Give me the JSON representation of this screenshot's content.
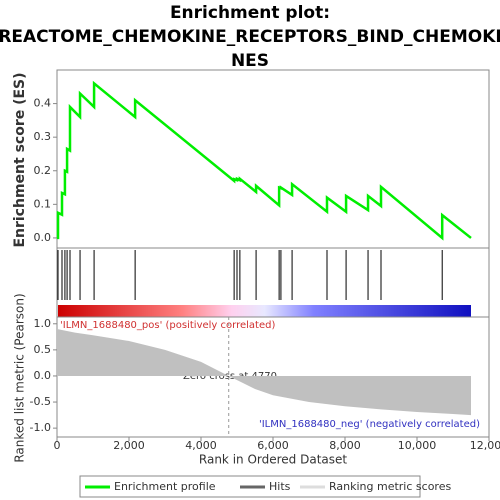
{
  "chart_data": [
    {
      "type": "line",
      "title": [
        "Enrichment plot:",
        "REACTOME_CHEMOKINE_RECEPTORS_BIND_CHEMOKI",
        "NES"
      ],
      "ylabel": "Enrichment score (ES)",
      "xlim": [
        0,
        12000
      ],
      "ylim": [
        -0.03,
        0.5
      ],
      "yticks": [
        {
          "value": 0,
          "label": "0.0"
        },
        0.1,
        0.2,
        0.3,
        0.4
      ],
      "series": [
        {
          "name": "Enrichment profile",
          "color": "#00ee00",
          "x": [
            0,
            28,
            28,
            139,
            139,
            220,
            220,
            280,
            280,
            361,
            361,
            640,
            640,
            1030,
            1030,
            2170,
            2170,
            4920,
            4920,
            5000,
            5000,
            5080,
            5080,
            5530,
            5530,
            6170,
            6170,
            6220,
            6220,
            6530,
            6530,
            7500,
            7500,
            8030,
            8030,
            8640,
            8640,
            9000,
            9000,
            10700,
            10700,
            11500
          ],
          "values": [
            0,
            0,
            0.075,
            0.069,
            0.134,
            0.13,
            0.2,
            0.197,
            0.265,
            0.26,
            0.39,
            0.36,
            0.43,
            0.39,
            0.46,
            0.36,
            0.41,
            0.17,
            0.175,
            0.172,
            0.176,
            0.172,
            0.176,
            0.137,
            0.155,
            0.097,
            0.15,
            0.148,
            0.15,
            0.128,
            0.16,
            0.078,
            0.12,
            0.078,
            0.125,
            0.083,
            0.125,
            0.095,
            0.152,
            0,
            0.068,
            0
          ]
        }
      ],
      "hits": {
        "name": "Hits",
        "color": "#000000",
        "x": [
          28,
          139,
          220,
          280,
          361,
          640,
          1030,
          2170,
          4920,
          5000,
          5080,
          5530,
          6170,
          6220,
          6530,
          7500,
          8030,
          8640,
          9000,
          10700
        ]
      }
    },
    {
      "type": "area",
      "ylabel": "Ranked list metric (Pearson)",
      "xlabel": "Rank in Ordered Dataset",
      "xlim": [
        0,
        12000
      ],
      "xticks": [
        0,
        {
          "value": 2000,
          "label": "2,000"
        },
        {
          "value": 4000,
          "label": "4,000"
        },
        {
          "value": 6000,
          "label": "6,000"
        },
        {
          "value": 8000,
          "label": "8,000"
        },
        {
          "value": 10000,
          "label": "10,000"
        },
        {
          "value": 12000,
          "label": "12,000"
        }
      ],
      "ylim": [
        -1.17,
        1.13
      ],
      "yticks": [
        {
          "value": 1,
          "label": "1.0"
        },
        0.5,
        {
          "value": 0,
          "label": "0.0"
        },
        -0.5,
        {
          "value": -1,
          "label": "-1.0"
        }
      ],
      "series": [
        {
          "name": "Ranking metric scores",
          "color": "#c0c0c0",
          "x": [
            0,
            500,
            1000,
            2000,
            3000,
            4000,
            4770,
            5500,
            6000,
            7000,
            8000,
            9000,
            10000,
            11000,
            11500
          ],
          "values": [
            0.9,
            0.83,
            0.78,
            0.67,
            0.5,
            0.27,
            0,
            -0.25,
            -0.37,
            -0.5,
            -0.58,
            -0.64,
            -0.69,
            -0.73,
            -0.75
          ]
        }
      ],
      "zero_cross": 4770,
      "annotations": [
        "'ILMN_1688480_pos' (positively correlated)",
        "Zero cross at 4770",
        "'ILMN_1688480_neg' (negatively correlated)"
      ]
    }
  ]
}
